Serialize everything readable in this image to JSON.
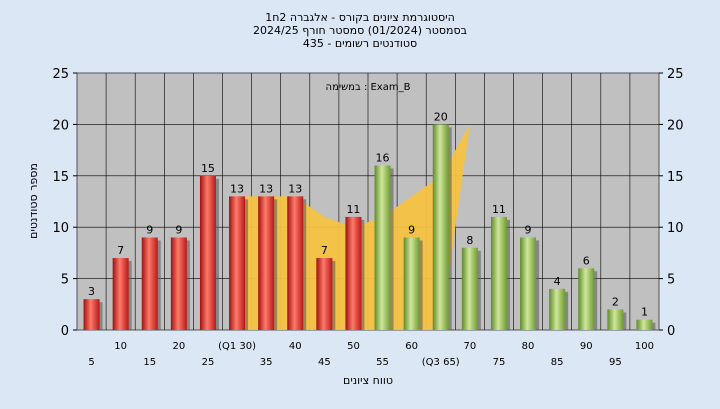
{
  "chart_data": {
    "type": "bar",
    "title_lines": [
      "היסטוגרמת ציונים בקורס - אלגברה 2ח1",
      "בסמסטר  (01/2024)  סמסטר חורף 2024/25",
      "סטודנטים רשומים - 435"
    ],
    "annotation": "במשימה : Exam_B",
    "xlabel": "טווח ציונים",
    "ylabel": "מספר סטודנטים",
    "ylim": [
      0,
      25
    ],
    "yticks": [
      0,
      5,
      10,
      15,
      20,
      25
    ],
    "categories": [
      "5",
      "10",
      "15",
      "20",
      "25",
      "(Q1 30)",
      "35",
      "40",
      "45",
      "50",
      "55",
      "60",
      "(Q3 65)",
      "70",
      "75",
      "80",
      "85",
      "90",
      "95",
      "100"
    ],
    "values": [
      3,
      7,
      9,
      9,
      15,
      13,
      13,
      13,
      7,
      11,
      16,
      9,
      20,
      8,
      11,
      9,
      4,
      6,
      2,
      1
    ],
    "bar_group": [
      "red",
      "red",
      "red",
      "red",
      "red",
      "red",
      "red",
      "red",
      "red",
      "red",
      "green",
      "green",
      "green",
      "green",
      "green",
      "green",
      "green",
      "green",
      "green",
      "green"
    ],
    "shaded_band": {
      "from_index": 5,
      "to_index": 12,
      "values": [
        13,
        13,
        13,
        11,
        10,
        11,
        13,
        15,
        20
      ]
    },
    "colors": {
      "background": "#dbe7f5",
      "plot": "#c0c0c0",
      "red_bar": "#e03030",
      "green_bar": "#8cba4a",
      "band": "#f5c242",
      "grid": "#000000"
    }
  }
}
